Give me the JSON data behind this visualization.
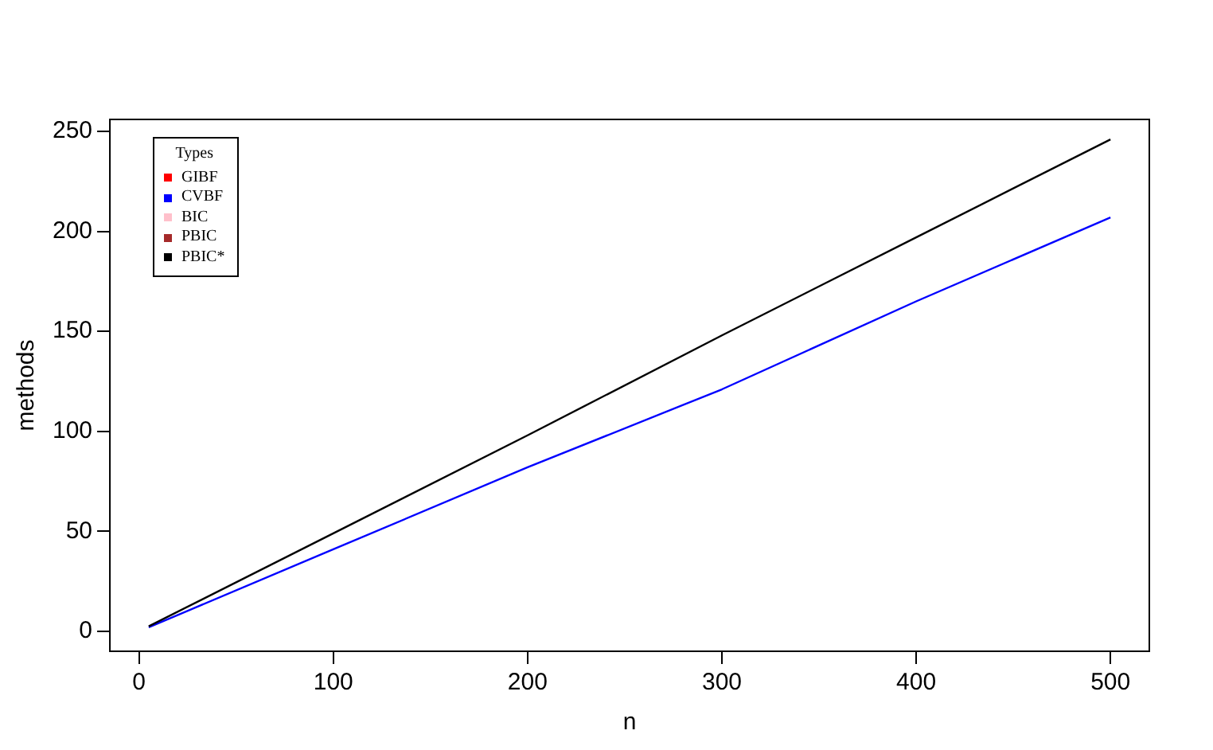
{
  "chart_data": {
    "type": "line",
    "xlabel": "n",
    "ylabel": "methods",
    "legend_title": "Types",
    "legend": "top left",
    "grid": false,
    "marker": "none",
    "line_style": "solid",
    "x": [
      5,
      100,
      200,
      300,
      400,
      500
    ],
    "xlim": [
      -15,
      520
    ],
    "xticks": [
      0,
      100,
      200,
      300,
      400,
      500
    ],
    "ylim": [
      -10,
      256
    ],
    "yticks": [
      0,
      50,
      100,
      150,
      200,
      250
    ],
    "series": [
      {
        "name": "GIBF",
        "color": "#ff0000",
        "values": [
          null,
          null,
          null,
          null,
          null,
          null
        ]
      },
      {
        "name": "CVBF",
        "color": "#0000ff",
        "values": [
          2,
          41,
          82,
          121,
          165,
          207
        ]
      },
      {
        "name": "BIC",
        "color": "#ffc0cb",
        "values": [
          null,
          null,
          null,
          null,
          null,
          null
        ]
      },
      {
        "name": "PBIC",
        "color": "#a52a2a",
        "values": [
          null,
          null,
          null,
          null,
          null,
          null
        ]
      },
      {
        "name": "PBIC*",
        "color": "#000000",
        "values": [
          2.5,
          49,
          98,
          148,
          197,
          246
        ]
      }
    ]
  }
}
